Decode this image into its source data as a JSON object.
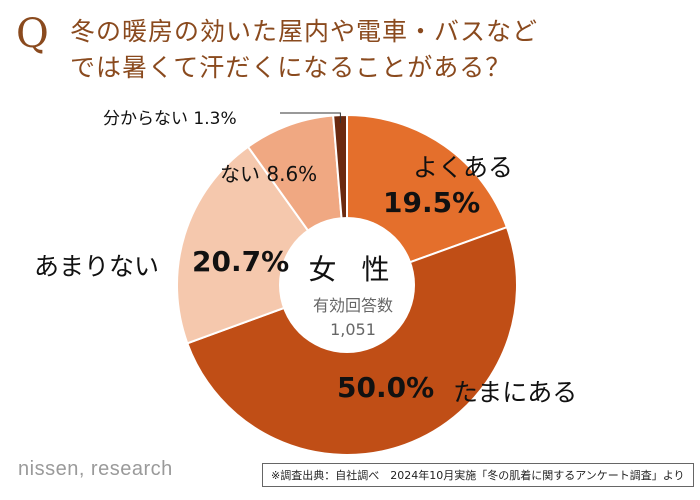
{
  "title": {
    "q_mark": "Q",
    "line1": "冬の暖房の効いた屋内や電車・バスなど",
    "line2": "では暑くて汗だくになることがある？"
  },
  "center": {
    "title": "女 性",
    "subtitle": "有効回答数",
    "count": "1,051"
  },
  "source": "※調査出典：自社調べ　2024年10月実施「冬の肌着に関するアンケート調査」より",
  "logo": "nissen, research",
  "colors": {
    "title": "#8a4a1e",
    "yoku_aru": "#e46f2c",
    "tamani_aru": "#c04e16",
    "amari_nai": "#f5c8ad",
    "nai": "#f0a882",
    "wakaranai": "#6b2a10"
  },
  "chart_data": {
    "type": "pie",
    "donut": true,
    "start": "top, clockwise",
    "labels": [
      "よくある",
      "たまにある",
      "あまりない",
      "ない",
      "分からない"
    ],
    "values": [
      19.5,
      50.0,
      20.7,
      8.6,
      1.3
    ],
    "value_labels": [
      "19.5%",
      "50.0%",
      "20.7%",
      "8.6%",
      "1.3%"
    ],
    "unit": "%"
  }
}
